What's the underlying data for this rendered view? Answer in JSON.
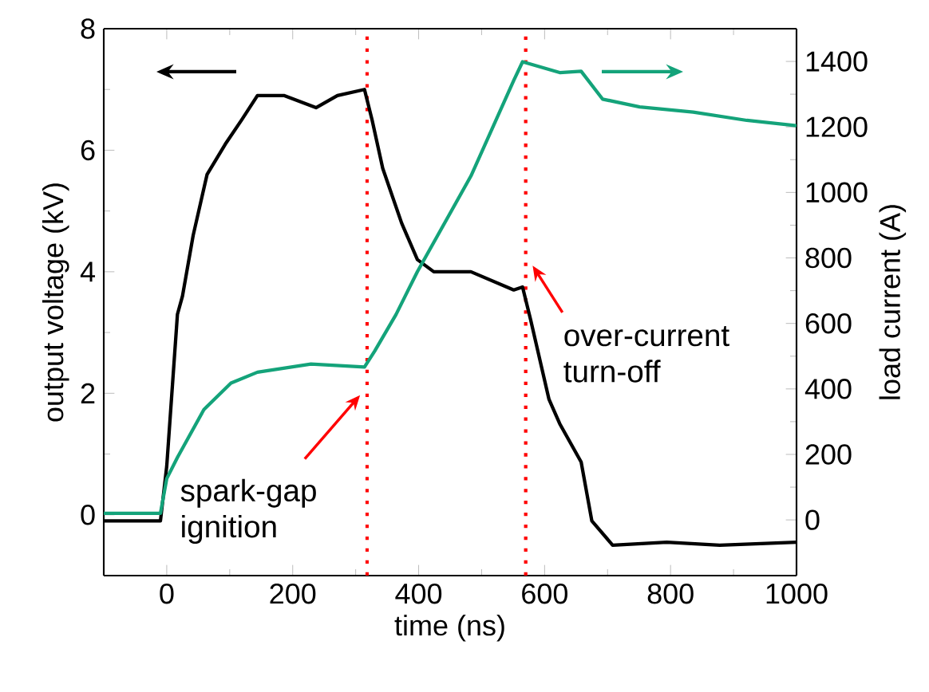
{
  "chart_data": {
    "type": "line",
    "xlabel": "time (ns)",
    "ylabel": "output voltage (kV)",
    "y2label": "load current (A)",
    "xlim": [
      -100,
      1000
    ],
    "xticks": [
      0,
      200,
      400,
      600,
      800,
      1000
    ],
    "ylim": [
      -1,
      8
    ],
    "yticks": [
      0,
      2,
      4,
      6,
      8
    ],
    "y2lim": [
      -170,
      1500
    ],
    "y2ticks": [
      0,
      200,
      400,
      600,
      800,
      1000,
      1200,
      1400
    ],
    "series": [
      {
        "color": "#000000",
        "x": [
          -100,
          -50,
          -10,
          0,
          17,
          25,
          42,
          64,
          93,
          119,
          144,
          186,
          237,
          271,
          314,
          326,
          343,
          373,
          398,
          424,
          483,
          551,
          565,
          578,
          607,
          624,
          658,
          675,
          708,
          794,
          878,
          1000
        ],
        "values": [
          -0.1,
          -0.1,
          -0.1,
          0.8,
          3.3,
          3.6,
          4.6,
          5.6,
          6.1,
          6.5,
          6.9,
          6.9,
          6.7,
          6.9,
          7.0,
          6.5,
          5.7,
          4.8,
          4.2,
          4.0,
          4.0,
          3.7,
          3.75,
          3.2,
          1.9,
          1.5,
          0.87,
          -0.1,
          -0.5,
          -0.45,
          -0.5,
          -0.45
        ]
      },
      {
        "color": "#14a37a",
        "axis": "y2",
        "x": [
          -100,
          -50,
          -10,
          0,
          17,
          59,
          102,
          144,
          229,
          314,
          330,
          364,
          398,
          483,
          551,
          565,
          624,
          658,
          692,
          751,
          836,
          921,
          1000
        ],
        "values": [
          20,
          20,
          20,
          126,
          191,
          337,
          418,
          451,
          476,
          467,
          515,
          627,
          758,
          1050,
          1342,
          1399,
          1366,
          1370,
          1285,
          1261,
          1245,
          1220,
          1204
        ]
      }
    ],
    "ref_lines": [
      {
        "axis": "x",
        "value": 318,
        "color": "#ff0000",
        "line_style": "dotted"
      },
      {
        "axis": "x",
        "value": 570,
        "color": "#ff0000",
        "line_style": "dotted"
      }
    ],
    "annotations": [
      {
        "text": "spark-gap ignition",
        "x": 307,
        "y": 1.97
      },
      {
        "text": "over-current turn-off",
        "x": 581,
        "y": 4.1
      }
    ],
    "grid": false,
    "marker": "none",
    "line_style": "solid"
  }
}
